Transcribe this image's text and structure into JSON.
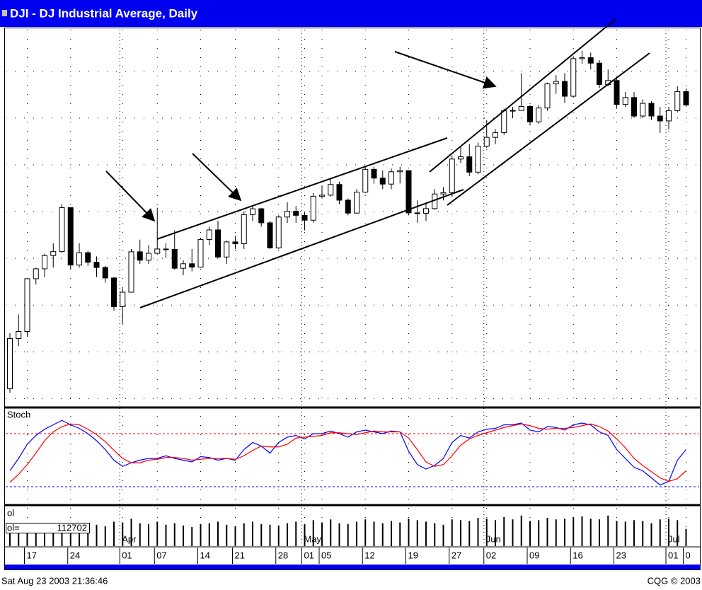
{
  "chart_data": [
    {
      "type": "candlestick",
      "title": "DJI - DJ Industrial Average, Daily",
      "categories": [
        null,
        null,
        "17",
        null,
        null,
        null,
        null,
        "24",
        null,
        null,
        null,
        null,
        null,
        "01",
        null,
        null,
        null,
        "07",
        null,
        null,
        null,
        null,
        "14",
        null,
        null,
        null,
        "21",
        null,
        null,
        null,
        null,
        "28",
        null,
        null,
        "01",
        null,
        "05",
        null,
        null,
        null,
        null,
        "12",
        null,
        null,
        null,
        null,
        "19",
        null,
        null,
        null,
        null,
        "27",
        null,
        null,
        null,
        "02",
        null,
        null,
        null,
        null,
        "09",
        null,
        null,
        null,
        null,
        "16",
        null,
        null,
        null,
        null,
        "23",
        null,
        null,
        null,
        null,
        null,
        "01",
        null,
        "0"
      ],
      "months": [
        null,
        null,
        null,
        null,
        null,
        null,
        null,
        null,
        null,
        null,
        null,
        null,
        null,
        "Apr",
        null,
        null,
        null,
        null,
        null,
        null,
        null,
        null,
        null,
        null,
        null,
        null,
        null,
        null,
        null,
        null,
        null,
        null,
        null,
        null,
        "May",
        null,
        null,
        null,
        null,
        null,
        null,
        null,
        null,
        null,
        null,
        null,
        null,
        null,
        null,
        null,
        null,
        null,
        null,
        null,
        null,
        "Jun",
        null,
        null,
        null,
        null,
        null,
        null,
        null,
        null,
        null,
        null,
        null,
        null,
        null,
        null,
        null,
        null,
        null,
        null,
        null,
        null,
        "Jul",
        null,
        null
      ],
      "open": [
        7553,
        7821,
        7859,
        8141,
        8194,
        8265,
        8286,
        8521,
        8214,
        8280,
        8229,
        8201,
        8145,
        7992,
        8069,
        8285,
        8240,
        8277,
        8300,
        8298,
        8197,
        8221,
        8203,
        8351,
        8402,
        8257,
        8338,
        8328,
        8484,
        8515,
        8440,
        8306,
        8471,
        8502,
        8480,
        8454,
        8582,
        8588,
        8645,
        8561,
        8492,
        8604,
        8726,
        8679,
        8647,
        8713,
        8719,
        8493,
        8491,
        8516,
        8594,
        8601,
        8781,
        8793,
        8711,
        8850,
        8897,
        8922,
        9039,
        9041,
        9062,
        8980,
        9054,
        9183,
        9196,
        9117,
        9318,
        9323,
        9294,
        9179,
        9201,
        9073,
        9110,
        9011,
        9079,
        9011,
        8985,
        9040,
        9142
      ],
      "high": [
        7850,
        7950,
        8145,
        8200,
        8275,
        8330,
        8540,
        8521,
        8330,
        8290,
        8260,
        8210,
        8150,
        8090,
        8300,
        8350,
        8320,
        8520,
        8330,
        8400,
        8240,
        8300,
        8360,
        8420,
        8450,
        8345,
        8370,
        8500,
        8530,
        8520,
        8450,
        8480,
        8550,
        8530,
        8500,
        8600,
        8640,
        8680,
        8660,
        8570,
        8620,
        8740,
        8740,
        8720,
        8730,
        8740,
        8720,
        8560,
        8540,
        8620,
        8630,
        8800,
        8850,
        8860,
        8870,
        8990,
        8940,
        9050,
        9060,
        9240,
        9070,
        9070,
        9190,
        9230,
        9240,
        9330,
        9360,
        9350,
        9310,
        9260,
        9210,
        9140,
        9140,
        9100,
        9090,
        9060,
        9060,
        9170,
        9160
      ],
      "low": [
        7530,
        7780,
        7830,
        8110,
        8150,
        8200,
        8280,
        8190,
        8200,
        8210,
        8150,
        8120,
        7970,
        7900,
        8069,
        8220,
        8220,
        8270,
        8250,
        8190,
        8160,
        8180,
        8200,
        8320,
        8250,
        8220,
        8300,
        8300,
        8450,
        8420,
        8300,
        8300,
        8440,
        8440,
        8400,
        8440,
        8570,
        8580,
        8540,
        8480,
        8490,
        8600,
        8650,
        8620,
        8620,
        8650,
        8480,
        8440,
        8450,
        8510,
        8560,
        8580,
        8760,
        8690,
        8700,
        8840,
        8860,
        8910,
        9000,
        9040,
        8960,
        8970,
        9040,
        9130,
        9080,
        9110,
        9290,
        9260,
        9160,
        9170,
        9050,
        9060,
        9000,
        9000,
        8990,
        8920,
        8940,
        9030,
        9060
      ],
      "close": [
        7821,
        7859,
        8141,
        8194,
        8265,
        8286,
        8521,
        8214,
        8280,
        8229,
        8201,
        8145,
        7992,
        8069,
        8285,
        8240,
        8277,
        8300,
        8298,
        8197,
        8221,
        8203,
        8351,
        8402,
        8257,
        8338,
        8328,
        8484,
        8515,
        8440,
        8306,
        8471,
        8502,
        8480,
        8454,
        8582,
        8588,
        8645,
        8561,
        8492,
        8604,
        8726,
        8679,
        8647,
        8713,
        8719,
        8493,
        8491,
        8516,
        8594,
        8601,
        8781,
        8793,
        8711,
        8850,
        8897,
        8922,
        9039,
        9041,
        9062,
        8980,
        9054,
        9183,
        9196,
        9117,
        9318,
        9323,
        9294,
        9179,
        9201,
        9073,
        9110,
        9011,
        9079,
        9011,
        8985,
        9040,
        9142,
        9070
      ],
      "up_color": "#ffffff",
      "down_color": "#000000",
      "ylim": [
        7475,
        9450
      ],
      "yticks": [
        7500,
        7750,
        8000,
        8250,
        8500,
        8750,
        9000,
        9250
      ],
      "grid": true
    },
    {
      "type": "line",
      "title": "Stoch",
      "series": [
        {
          "color": "#0000ff",
          "values": [
            38,
            52,
            68,
            78,
            85,
            90,
            95,
            90,
            86,
            80,
            72,
            62,
            50,
            43,
            47,
            50,
            52,
            52,
            55,
            52,
            50,
            48,
            54,
            53,
            50,
            52,
            50,
            62,
            70,
            66,
            58,
            70,
            76,
            78,
            74,
            80,
            80,
            83,
            80,
            76,
            82,
            84,
            82,
            80,
            83,
            82,
            60,
            45,
            40,
            44,
            52,
            70,
            78,
            75,
            82,
            85,
            86,
            90,
            90,
            92,
            84,
            82,
            88,
            87,
            84,
            90,
            92,
            90,
            82,
            78,
            62,
            52,
            42,
            38,
            30,
            22,
            26,
            50,
            62
          ]
        },
        {
          "color": "#ff0000",
          "values": [
            25,
            34,
            45,
            58,
            72,
            82,
            88,
            91,
            90,
            85,
            79,
            71,
            61,
            52,
            47,
            47,
            50,
            51,
            53,
            53,
            52,
            50,
            51,
            52,
            52,
            52,
            51,
            55,
            61,
            66,
            65,
            65,
            68,
            75,
            76,
            77,
            78,
            81,
            81,
            80,
            79,
            81,
            83,
            82,
            82,
            82,
            75,
            62,
            48,
            43,
            45,
            55,
            67,
            74,
            78,
            81,
            84,
            87,
            89,
            91,
            89,
            86,
            85,
            86,
            86,
            87,
            89,
            91,
            88,
            83,
            74,
            64,
            52,
            44,
            37,
            30,
            26,
            29,
            38
          ]
        }
      ],
      "ylim": [
        0,
        100
      ],
      "yticks": [
        20,
        80
      ],
      "ytick_colors": [
        "#0000ff",
        "#ff0000"
      ]
    },
    {
      "type": "bar",
      "title": "ol",
      "readout_label": "ol=",
      "color": "#000000",
      "values": [
        150000,
        140000,
        170000,
        160000,
        150000,
        165000,
        190000,
        175000,
        150000,
        145000,
        140000,
        130000,
        160000,
        155000,
        180000,
        150000,
        145000,
        160000,
        140000,
        150000,
        135000,
        125000,
        145000,
        150000,
        160000,
        140000,
        130000,
        150000,
        160000,
        145000,
        140000,
        135000,
        150000,
        160000,
        145000,
        170000,
        155000,
        175000,
        150000,
        145000,
        160000,
        175000,
        160000,
        150000,
        165000,
        155000,
        180000,
        170000,
        160000,
        150000,
        140000,
        175000,
        170000,
        165000,
        185000,
        180000,
        170000,
        190000,
        175000,
        200000,
        165000,
        170000,
        185000,
        175000,
        180000,
        190000,
        195000,
        180000,
        175000,
        200000,
        165000,
        160000,
        170000,
        165000,
        150000,
        175000,
        180000,
        170000,
        112702
      ],
      "ylim": [
        0,
        250000
      ]
    }
  ],
  "footer": {
    "timestamp": "Sat Aug 23 2003 21:36:46",
    "copyright": "CQG © 2003"
  }
}
